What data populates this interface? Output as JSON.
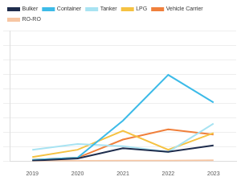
{
  "chart_data": {
    "type": "line",
    "categories": [
      "2019",
      "2020",
      "2021",
      "2022",
      "2023"
    ],
    "series": [
      {
        "name": "Bulker",
        "color": "#1f2d4d",
        "values": [
          5,
          20,
          90,
          65,
          110
        ]
      },
      {
        "name": "Container",
        "color": "#3dbbe8",
        "values": [
          10,
          25,
          280,
          595,
          405
        ]
      },
      {
        "name": "Tanker",
        "color": "#a8e3f2",
        "values": [
          80,
          120,
          105,
          65,
          260
        ]
      },
      {
        "name": "LPG",
        "color": "#f5c242",
        "values": [
          30,
          80,
          210,
          80,
          195
        ]
      },
      {
        "name": "Vehicle Carrier",
        "color": "#f0803c",
        "values": [
          10,
          25,
          150,
          220,
          185
        ]
      },
      {
        "name": "RO-RO",
        "color": "#f7c6a3",
        "values": [
          2,
          3,
          5,
          5,
          8
        ]
      }
    ],
    "ylim": [
      0,
      900
    ],
    "yticks": [
      0,
      100,
      200,
      300,
      400,
      500,
      600,
      700,
      800,
      900
    ],
    "grid": true,
    "legend": "top",
    "tick_labels": "x"
  }
}
